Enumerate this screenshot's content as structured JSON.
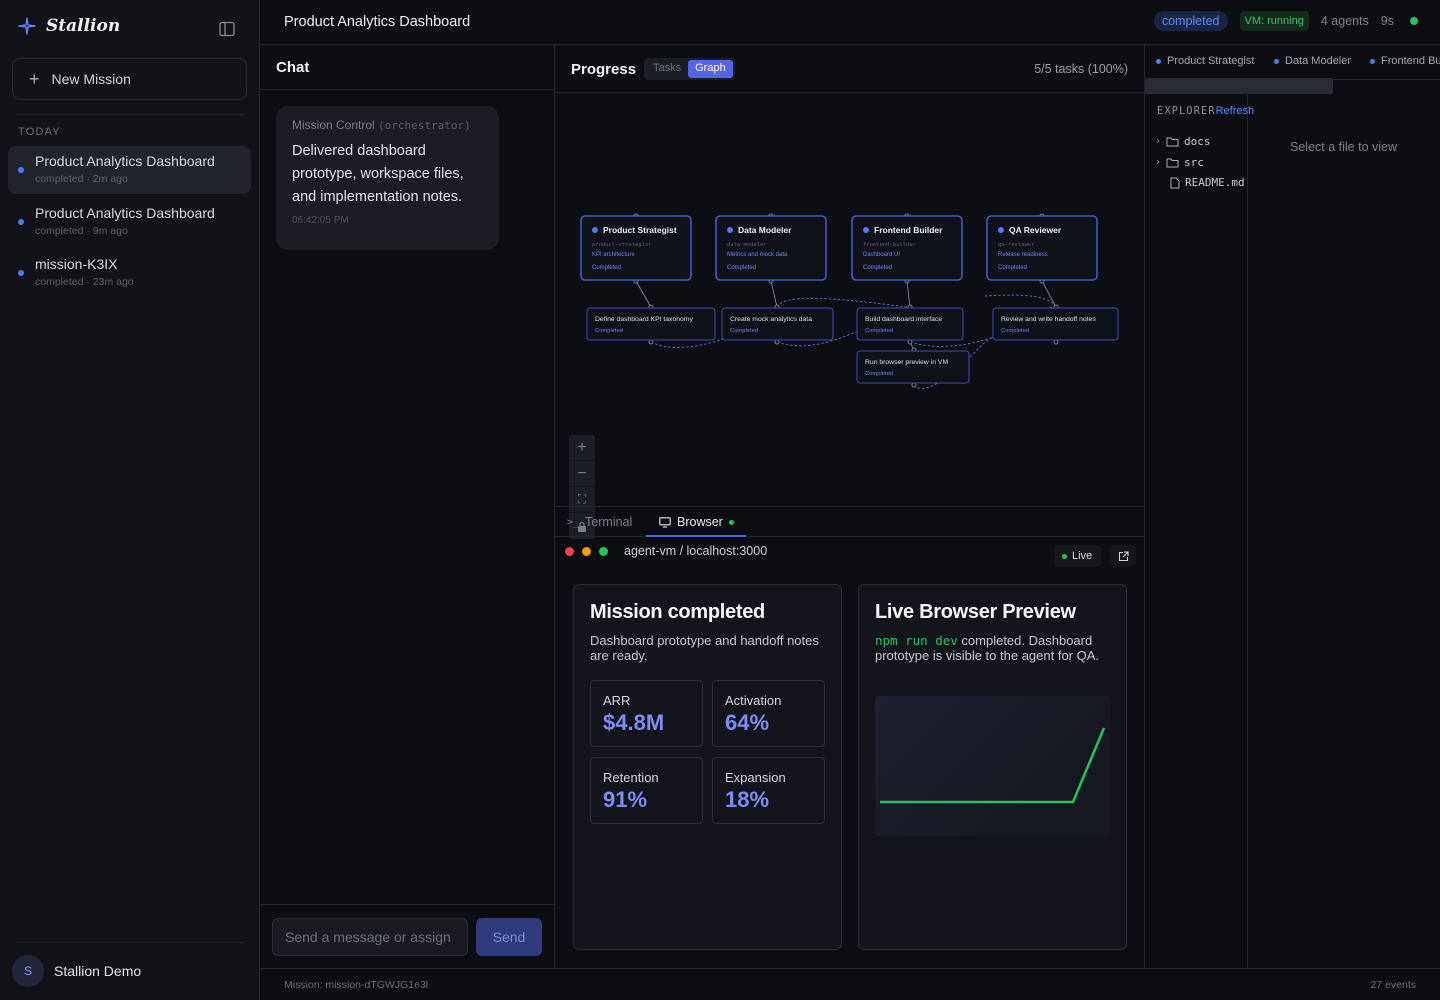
{
  "app": {
    "name": "Stallion"
  },
  "sidebar": {
    "new_mission_label": "New Mission",
    "section_label": "TODAY",
    "missions": [
      {
        "title": "Product Analytics Dashboard",
        "meta": "completed · 2m ago",
        "active": true
      },
      {
        "title": "Product Analytics Dashboard",
        "meta": "completed · 9m ago",
        "active": false
      },
      {
        "title": "mission-K3IX",
        "meta": "completed · 23m ago",
        "active": false
      }
    ],
    "user": {
      "initial": "S",
      "name": "Stallion Demo"
    }
  },
  "header": {
    "title": "Product Analytics Dashboard",
    "status": "completed",
    "vm_status": "VM: running",
    "agents": "4 agents",
    "elapsed": "9s"
  },
  "chat": {
    "title": "Chat",
    "message": {
      "sender": "Mission Control",
      "role": "(orchestrator)",
      "text": "Delivered dashboard prototype, workspace files, and implementation notes.",
      "time": "06:42:05 PM"
    },
    "input_placeholder": "Send a message or assign",
    "send_label": "Send"
  },
  "progress": {
    "title": "Progress",
    "tab_tasks": "Tasks",
    "tab_graph": "Graph",
    "count": "5/5 tasks (100%)",
    "agents": [
      {
        "name": "Product Strategist",
        "id": "product-strategist",
        "focus": "KPI architecture",
        "status": "Completed"
      },
      {
        "name": "Data Modeler",
        "id": "data-modeler",
        "focus": "Metrics and mock data",
        "status": "Completed"
      },
      {
        "name": "Frontend Builder",
        "id": "frontend-builder",
        "focus": "Dashboard UI",
        "status": "Completed"
      },
      {
        "name": "QA Reviewer",
        "id": "qa-reviewer",
        "focus": "Release readiness",
        "status": "Completed"
      }
    ],
    "tasks": [
      {
        "title": "Define dashboard KPI taxonomy",
        "status": "Completed"
      },
      {
        "title": "Create mock analytics data",
        "status": "Completed"
      },
      {
        "title": "Build dashboard interface",
        "status": "Completed"
      },
      {
        "title": "Review and write handoff notes",
        "status": "Completed"
      },
      {
        "title": "Run browser preview in VM",
        "status": "Completed"
      }
    ]
  },
  "browser_panel": {
    "tab_terminal": "Terminal",
    "tab_browser": "Browser",
    "url": "agent-vm / localhost:3000",
    "live_label": "Live",
    "card_left": {
      "title": "Mission completed",
      "subtitle": "Dashboard prototype and handoff notes are ready.",
      "metrics": [
        {
          "label": "ARR",
          "value": "$4.8M"
        },
        {
          "label": "Activation",
          "value": "64%"
        },
        {
          "label": "Retention",
          "value": "91%"
        },
        {
          "label": "Expansion",
          "value": "18%"
        }
      ]
    },
    "card_right": {
      "title": "Live Browser Preview",
      "command": "npm run dev",
      "text": " completed. Dashboard prototype is visible to the agent for QA."
    },
    "colors": {
      "accent": "#7e8cf8",
      "spark": "#22c55e"
    }
  },
  "right_panel": {
    "agent_tabs": [
      "Product Strategist",
      "Data Modeler",
      "Frontend Builder"
    ],
    "explorer_label": "EXPLORER",
    "refresh_label": "Refresh",
    "tree": [
      {
        "name": "docs",
        "type": "folder"
      },
      {
        "name": "src",
        "type": "folder"
      },
      {
        "name": "README.md",
        "type": "file"
      }
    ],
    "empty_text": "Select a file to view"
  },
  "footer": {
    "mission_id": "Mission: mission-dTGWJG1e3l",
    "events": "27 events"
  }
}
